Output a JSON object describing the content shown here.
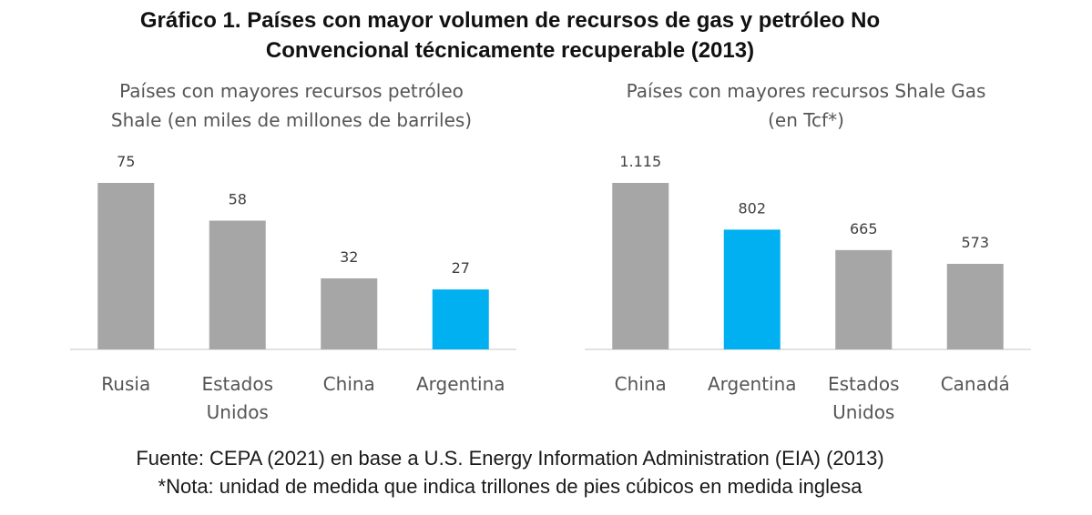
{
  "title": {
    "line1": "Gráfico 1. Países con mayor volumen de recursos de gas y petróleo No",
    "line2": "Convencional técnicamente recuperable (2013)"
  },
  "footer": {
    "source": "Fuente: CEPA (2021) en base a U.S. Energy Information Administration (EIA) (2013)",
    "note": "*Nota: unidad de medida que indica trillones de pies cúbicos en medida inglesa"
  },
  "colors": {
    "gray": "#a6a6a6",
    "highlight": "#00b0f0",
    "axis": "#d9d9d9"
  },
  "chart_data": [
    {
      "type": "bar",
      "title_lines": [
        "Países con mayores recursos petróleo",
        "Shale (en miles de millones de barriles)"
      ],
      "categories": [
        [
          "Rusia"
        ],
        [
          "Estados",
          "Unidos"
        ],
        [
          "China"
        ],
        [
          "Argentina"
        ]
      ],
      "values": [
        75,
        58,
        32,
        27
      ],
      "value_labels": [
        "75",
        "58",
        "32",
        "27"
      ],
      "highlight_index": 3,
      "ylim": [
        0,
        75
      ]
    },
    {
      "type": "bar",
      "title_lines": [
        "Países con mayores recursos Shale Gas",
        "(en Tcf*)"
      ],
      "categories": [
        [
          "China"
        ],
        [
          "Argentina"
        ],
        [
          "Estados",
          "Unidos"
        ],
        [
          "Canadá"
        ]
      ],
      "values": [
        1115,
        802,
        665,
        573
      ],
      "value_labels": [
        "1.115",
        "802",
        "665",
        "573"
      ],
      "highlight_index": 1,
      "ylim": [
        0,
        1115
      ]
    }
  ]
}
